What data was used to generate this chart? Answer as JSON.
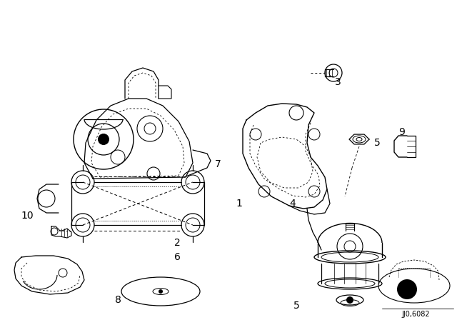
{
  "background_color": "#ffffff",
  "line_color": "#000000",
  "watermark": "JJ0,6082",
  "fig_w": 6.4,
  "fig_h": 4.48,
  "dpi": 100
}
